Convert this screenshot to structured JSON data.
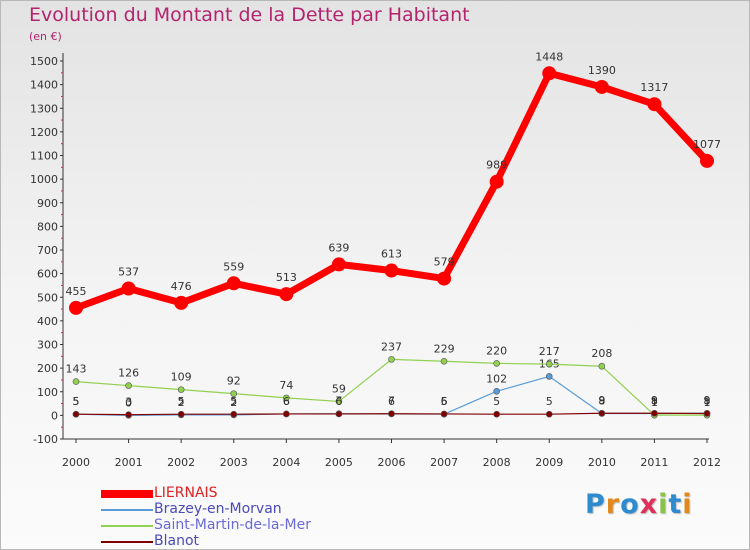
{
  "chart_data": {
    "type": "line",
    "title": "Evolution du Montant de la Dette par Habitant",
    "unit_label": "(en €)",
    "x": [
      "2000",
      "2001",
      "2002",
      "2003",
      "2004",
      "2005",
      "2006",
      "2007",
      "2008",
      "2009",
      "2010",
      "2011",
      "2012"
    ],
    "ylim": [
      -100,
      1500
    ],
    "y_ticks": [
      "-100",
      "0",
      "100",
      "200",
      "300",
      "400",
      "500",
      "600",
      "700",
      "800",
      "900",
      "1000",
      "1100",
      "1200",
      "1300",
      "1400",
      "1500"
    ],
    "grid": false,
    "legend_position": "bottom-left",
    "series": [
      {
        "name": "LIERNAIS",
        "color": "#ff0000",
        "values": [
          455,
          537,
          476,
          559,
          513,
          639,
          613,
          579,
          989,
          1448,
          1390,
          1317,
          1077
        ]
      },
      {
        "name": "Brazey-en-Morvan",
        "color": "#5b9bd5",
        "values": [
          5,
          0,
          2,
          2,
          6,
          7,
          6,
          5,
          102,
          165,
          8,
          8,
          9
        ]
      },
      {
        "name": "Saint-Martin-de-la-Mer",
        "color": "#92d050",
        "values": [
          143,
          126,
          109,
          92,
          74,
          59,
          237,
          229,
          220,
          217,
          208,
          1,
          1
        ]
      },
      {
        "name": "Blanot",
        "color": "#800000",
        "values": [
          5,
          3,
          5,
          5,
          6,
          6,
          7,
          6,
          5,
          5,
          9,
          9,
          8
        ]
      }
    ]
  },
  "logo": {
    "text": "Proxiti",
    "letter_colors": [
      "#2e8bd0",
      "#e08a1e",
      "#2e8bd0",
      "#e0305a",
      "#8bc34a",
      "#2e8bd0",
      "#e08a1e"
    ]
  }
}
